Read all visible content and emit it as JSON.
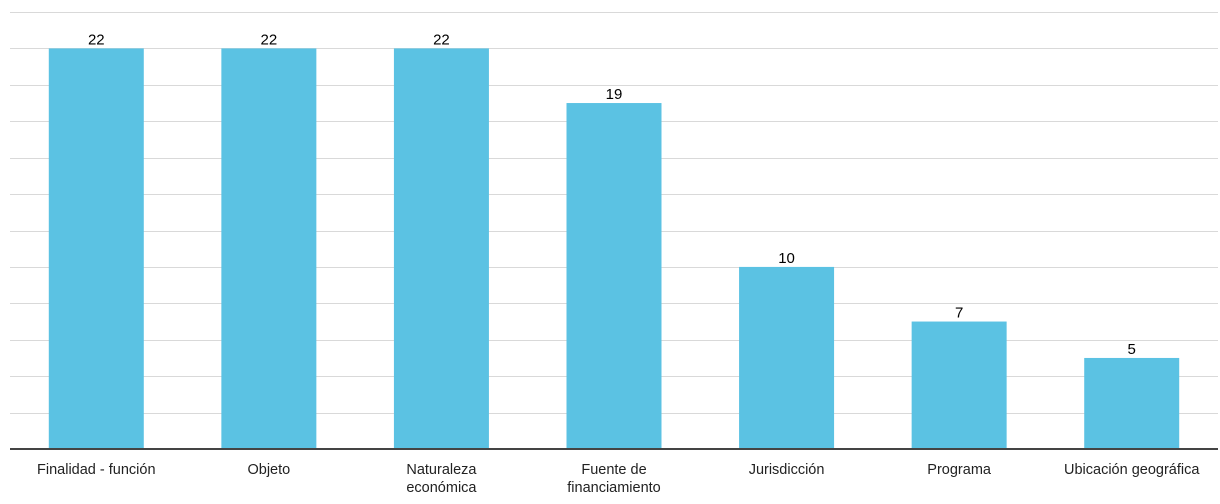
{
  "chart_data": {
    "type": "bar",
    "categories": [
      [
        "Finalidad - función"
      ],
      [
        "Objeto"
      ],
      [
        "Naturaleza",
        "económica"
      ],
      [
        "Fuente de",
        "financiamiento"
      ],
      [
        "Jurisdicción"
      ],
      [
        "Programa"
      ],
      [
        "Ubicación geográfica"
      ]
    ],
    "values": [
      22,
      22,
      22,
      19,
      10,
      7,
      5
    ],
    "data_labels": [
      "22",
      "22",
      "22",
      "19",
      "10",
      "7",
      "5"
    ],
    "ylim": [
      0,
      24
    ],
    "grid_step": 2,
    "grid": true,
    "y_tick_labels_shown": false,
    "title": "",
    "xlabel": "",
    "ylabel": "",
    "bar_color": "#5bc2e3",
    "grid_color": "#d9d9d9",
    "axis_color": "#444444"
  }
}
